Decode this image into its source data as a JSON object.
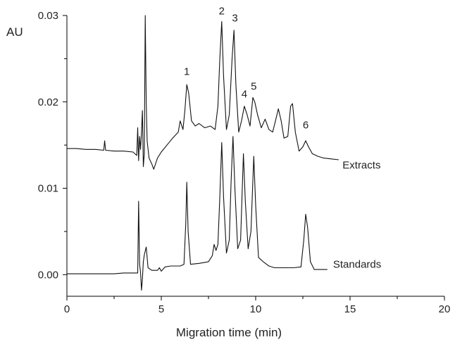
{
  "chart_data": {
    "type": "line",
    "title": "",
    "xlabel": "Migration time (min)",
    "ylabel": "AU",
    "xlim": [
      0,
      20
    ],
    "ylim": [
      -0.0025,
      0.03
    ],
    "x_ticks": [
      "0",
      "5",
      "10",
      "15",
      "20"
    ],
    "y_ticks": [
      "0.00",
      "0.01",
      "0.02",
      "0.03"
    ],
    "grid": false,
    "series": [
      {
        "name": "Extracts",
        "baseline": [
          [
            0,
            0.0146
          ],
          [
            3.5,
            0.0142
          ],
          [
            3.7,
            0.0138
          ]
        ],
        "points": [
          [
            0,
            0.0146
          ],
          [
            0.5,
            0.0146
          ],
          [
            1.0,
            0.0145
          ],
          [
            1.5,
            0.0145
          ],
          [
            1.95,
            0.0144
          ],
          [
            2.0,
            0.0155
          ],
          [
            2.05,
            0.0144
          ],
          [
            2.5,
            0.0143
          ],
          [
            3.0,
            0.0143
          ],
          [
            3.5,
            0.0142
          ],
          [
            3.7,
            0.0138
          ],
          [
            3.75,
            0.017
          ],
          [
            3.8,
            0.0132
          ],
          [
            3.85,
            0.016
          ],
          [
            3.9,
            0.0145
          ],
          [
            3.95,
            0.0165
          ],
          [
            4.0,
            0.019
          ],
          [
            4.05,
            0.0125
          ],
          [
            4.1,
            0.014
          ],
          [
            4.15,
            0.03
          ],
          [
            4.2,
            0.02
          ],
          [
            4.25,
            0.0155
          ],
          [
            4.35,
            0.0135
          ],
          [
            4.5,
            0.0128
          ],
          [
            4.6,
            0.0122
          ],
          [
            4.8,
            0.0135
          ],
          [
            5.0,
            0.0142
          ],
          [
            5.3,
            0.015
          ],
          [
            5.6,
            0.0158
          ],
          [
            5.9,
            0.0165
          ],
          [
            6.0,
            0.0178
          ],
          [
            6.15,
            0.0168
          ],
          [
            6.25,
            0.019
          ],
          [
            6.35,
            0.022
          ],
          [
            6.45,
            0.021
          ],
          [
            6.6,
            0.0178
          ],
          [
            6.8,
            0.0172
          ],
          [
            7.0,
            0.0175
          ],
          [
            7.3,
            0.017
          ],
          [
            7.6,
            0.0172
          ],
          [
            7.85,
            0.0168
          ],
          [
            8.0,
            0.0195
          ],
          [
            8.1,
            0.025
          ],
          [
            8.2,
            0.0293
          ],
          [
            8.3,
            0.023
          ],
          [
            8.45,
            0.0168
          ],
          [
            8.6,
            0.0185
          ],
          [
            8.75,
            0.025
          ],
          [
            8.85,
            0.0283
          ],
          [
            8.95,
            0.022
          ],
          [
            9.1,
            0.0165
          ],
          [
            9.25,
            0.0178
          ],
          [
            9.4,
            0.0195
          ],
          [
            9.55,
            0.0185
          ],
          [
            9.7,
            0.0172
          ],
          [
            9.85,
            0.0205
          ],
          [
            9.95,
            0.02
          ],
          [
            10.1,
            0.0185
          ],
          [
            10.3,
            0.017
          ],
          [
            10.5,
            0.018
          ],
          [
            10.7,
            0.0168
          ],
          [
            10.9,
            0.0165
          ],
          [
            11.05,
            0.0178
          ],
          [
            11.2,
            0.0192
          ],
          [
            11.35,
            0.0178
          ],
          [
            11.5,
            0.0158
          ],
          [
            11.7,
            0.016
          ],
          [
            11.85,
            0.0195
          ],
          [
            11.95,
            0.0198
          ],
          [
            12.1,
            0.0165
          ],
          [
            12.3,
            0.0143
          ],
          [
            12.5,
            0.0148
          ],
          [
            12.65,
            0.0155
          ],
          [
            12.8,
            0.0148
          ],
          [
            13.0,
            0.014
          ],
          [
            13.3,
            0.0137
          ],
          [
            13.6,
            0.0135
          ],
          [
            14.0,
            0.0134
          ],
          [
            14.4,
            0.0133
          ]
        ]
      },
      {
        "name": "Standards",
        "points": [
          [
            0,
            0.0001
          ],
          [
            0.5,
            0.0001
          ],
          [
            1.0,
            0.0001
          ],
          [
            1.5,
            0.0001
          ],
          [
            2.0,
            0.0001
          ],
          [
            2.5,
            0.0001
          ],
          [
            3.0,
            0.0002
          ],
          [
            3.5,
            0.0002
          ],
          [
            3.75,
            0.0002
          ],
          [
            3.8,
            0.0085
          ],
          [
            3.85,
            0.0012
          ],
          [
            3.9,
            0.0003
          ],
          [
            3.95,
            -0.0018
          ],
          [
            4.0,
            -0.0005
          ],
          [
            4.05,
            0.0015
          ],
          [
            4.1,
            0.0023
          ],
          [
            4.2,
            0.0032
          ],
          [
            4.3,
            0.0008
          ],
          [
            4.5,
            0.0005
          ],
          [
            4.8,
            0.0005
          ],
          [
            4.9,
            0.0008
          ],
          [
            5.0,
            0.0004
          ],
          [
            5.2,
            0.0009
          ],
          [
            5.5,
            0.001
          ],
          [
            6.0,
            0.001
          ],
          [
            6.2,
            0.0012
          ],
          [
            6.3,
            0.006
          ],
          [
            6.35,
            0.0107
          ],
          [
            6.42,
            0.005
          ],
          [
            6.55,
            0.0012
          ],
          [
            7.0,
            0.0013
          ],
          [
            7.5,
            0.0015
          ],
          [
            7.7,
            0.0022
          ],
          [
            7.8,
            0.0035
          ],
          [
            7.9,
            0.0028
          ],
          [
            8.0,
            0.0035
          ],
          [
            8.1,
            0.009
          ],
          [
            8.2,
            0.0153
          ],
          [
            8.3,
            0.009
          ],
          [
            8.45,
            0.0025
          ],
          [
            8.6,
            0.004
          ],
          [
            8.7,
            0.011
          ],
          [
            8.8,
            0.016
          ],
          [
            8.9,
            0.01
          ],
          [
            9.05,
            0.003
          ],
          [
            9.2,
            0.004
          ],
          [
            9.35,
            0.014
          ],
          [
            9.45,
            0.0085
          ],
          [
            9.6,
            0.003
          ],
          [
            9.75,
            0.005
          ],
          [
            9.9,
            0.0137
          ],
          [
            10.0,
            0.008
          ],
          [
            10.15,
            0.002
          ],
          [
            10.4,
            0.0015
          ],
          [
            10.7,
            0.001
          ],
          [
            11.0,
            0.0008
          ],
          [
            11.5,
            0.0008
          ],
          [
            12.0,
            0.0008
          ],
          [
            12.4,
            0.0009
          ],
          [
            12.55,
            0.004
          ],
          [
            12.65,
            0.007
          ],
          [
            12.75,
            0.0055
          ],
          [
            12.9,
            0.0015
          ],
          [
            13.1,
            0.0006
          ],
          [
            13.5,
            0.0006
          ],
          [
            13.8,
            0.0006
          ]
        ]
      }
    ],
    "series_labels": [
      {
        "text": "Extracts",
        "x": 14.6,
        "y": 0.0127
      },
      {
        "text": "Standards",
        "x": 14.1,
        "y": 0.0012
      }
    ],
    "peak_annotations": [
      {
        "text": "1",
        "x": 6.35,
        "y": 0.0228
      },
      {
        "text": "2",
        "x": 8.2,
        "y": 0.0298
      },
      {
        "text": "3",
        "x": 8.9,
        "y": 0.029
      },
      {
        "text": "4",
        "x": 9.4,
        "y": 0.0202
      },
      {
        "text": "5",
        "x": 9.9,
        "y": 0.0211
      },
      {
        "text": "6",
        "x": 12.65,
        "y": 0.0166
      }
    ]
  }
}
